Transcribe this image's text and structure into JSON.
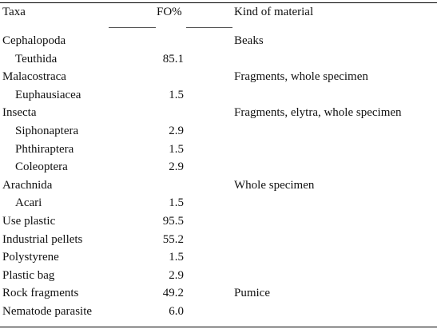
{
  "table": {
    "headers": {
      "taxa": "Taxa",
      "fo": "FO%",
      "kind": "Kind of material"
    },
    "rows": [
      {
        "taxon": "Cephalopoda",
        "fo": "",
        "kind": "Beaks",
        "indent": false
      },
      {
        "taxon": "Teuthida",
        "fo": "85.1",
        "kind": "",
        "indent": true
      },
      {
        "taxon": "Malacostraca",
        "fo": "",
        "kind": "Fragments, whole specimen",
        "indent": false
      },
      {
        "taxon": "Euphausiacea",
        "fo": "1.5",
        "kind": "",
        "indent": true
      },
      {
        "taxon": "Insecta",
        "fo": "",
        "kind": "Fragments, elytra, whole specimen",
        "indent": false
      },
      {
        "taxon": "Siphonaptera",
        "fo": "2.9",
        "kind": "",
        "indent": true
      },
      {
        "taxon": "Phthiraptera",
        "fo": "1.5",
        "kind": "",
        "indent": true
      },
      {
        "taxon": "Coleoptera",
        "fo": "2.9",
        "kind": "",
        "indent": true
      },
      {
        "taxon": "Arachnida",
        "fo": "",
        "kind": "Whole specimen",
        "indent": false
      },
      {
        "taxon": "Acari",
        "fo": "1.5",
        "kind": "",
        "indent": true
      },
      {
        "taxon": "Use plastic",
        "fo": "95.5",
        "kind": "",
        "indent": false
      },
      {
        "taxon": "Industrial pellets",
        "fo": "55.2",
        "kind": "",
        "indent": false
      },
      {
        "taxon": "Polystyrene",
        "fo": "1.5",
        "kind": "",
        "indent": false
      },
      {
        "taxon": "Plastic bag",
        "fo": "2.9",
        "kind": "",
        "indent": false
      },
      {
        "taxon": "Rock fragments",
        "fo": "49.2",
        "kind": "Pumice",
        "indent": false
      },
      {
        "taxon": "Nematode parasite",
        "fo": "6.0",
        "kind": "",
        "indent": false
      }
    ]
  }
}
